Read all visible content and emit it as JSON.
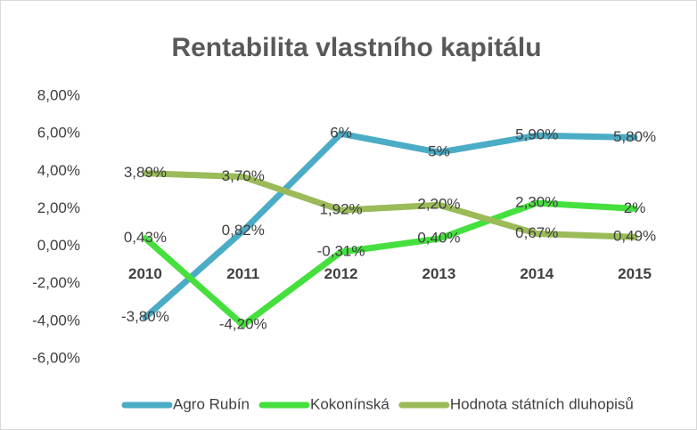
{
  "chart_data": {
    "type": "line",
    "title": "Rentabilita vlastního kapitálu",
    "categories": [
      "2010",
      "2011",
      "2012",
      "2013",
      "2014",
      "2015"
    ],
    "series": [
      {
        "name": "Agro Rubín",
        "color": "#4bacc6",
        "values": [
          -3.8,
          0.82,
          6,
          5,
          5.9,
          5.8
        ],
        "value_labels": [
          "-3,80%",
          "0,82%",
          "6%",
          "5%",
          "5,90%",
          "5,80%"
        ]
      },
      {
        "name": "Kokonínská",
        "color": "#45e03e",
        "values": [
          0.43,
          -4.2,
          -0.31,
          0.4,
          2.3,
          2
        ],
        "value_labels": [
          "0,43%",
          "-4,20%",
          "-0,31%",
          "0,40%",
          "2,30%",
          "2%"
        ]
      },
      {
        "name": "Hodnota státních dluhopisů",
        "color": "#9bbb59",
        "values": [
          3.89,
          3.7,
          1.92,
          2.2,
          0.67,
          0.49
        ],
        "value_labels": [
          "3,89%",
          "3,70%",
          "1,92%",
          "2,20%",
          "0,67%",
          "0,49%"
        ]
      }
    ],
    "ylim": [
      -6,
      8
    ],
    "yticks": [
      {
        "value": -6,
        "label": "-6,00%"
      },
      {
        "value": -4,
        "label": "-4,00%"
      },
      {
        "value": -2,
        "label": "-2,00%"
      },
      {
        "value": 0,
        "label": "0,00%"
      },
      {
        "value": 2,
        "label": "2,00%"
      },
      {
        "value": 4,
        "label": "4,00%"
      },
      {
        "value": 6,
        "label": "6,00%"
      },
      {
        "value": 8,
        "label": "8,00%"
      }
    ],
    "grid": false,
    "legend": "bottom"
  }
}
